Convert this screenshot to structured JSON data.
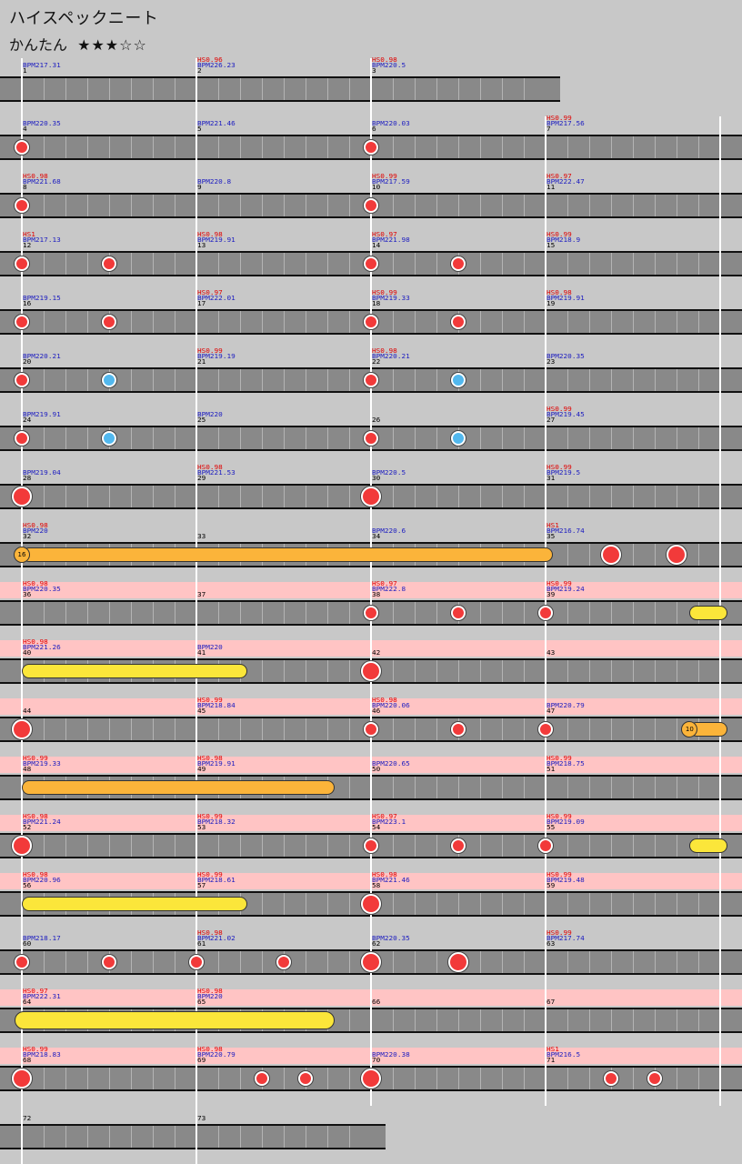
{
  "song_title": "ハイスペックニート",
  "difficulty": {
    "name": "かんたん",
    "stars": "★★★☆☆"
  },
  "colors": {
    "don": "#f23a3a",
    "ka": "#52b8ee",
    "roll": "#fbe63a",
    "big_roll": "#fbb43a",
    "gogo": "#ffc4c4",
    "track": "#898989"
  },
  "rows": [
    {
      "gogo": false,
      "measures": [
        {
          "num": "1",
          "bpm": "BPM217.31",
          "hs": ""
        },
        {
          "num": "2",
          "bpm": "BPM226.23",
          "hs": "HS0.96"
        },
        {
          "num": "3",
          "bpm": "BPM220.5",
          "hs": "HS0.98"
        }
      ],
      "notes": [],
      "rolls": [],
      "balloons": []
    },
    {
      "gogo": false,
      "measures": [
        {
          "num": "4",
          "bpm": "BPM220.35",
          "hs": ""
        },
        {
          "num": "5",
          "bpm": "BPM221.46",
          "hs": ""
        },
        {
          "num": "6",
          "bpm": "BPM220.03",
          "hs": ""
        },
        {
          "num": "7",
          "bpm": "BPM217.56",
          "hs": "HS0.99"
        }
      ],
      "notes": [
        {
          "m": 0,
          "b": 0,
          "t": "don",
          "big": false
        },
        {
          "m": 2,
          "b": 0,
          "t": "don",
          "big": false
        }
      ],
      "rolls": [],
      "balloons": []
    },
    {
      "gogo": false,
      "measures": [
        {
          "num": "8",
          "bpm": "BPM221.68",
          "hs": "HS0.98"
        },
        {
          "num": "9",
          "bpm": "BPM220.8",
          "hs": ""
        },
        {
          "num": "10",
          "bpm": "BPM217.59",
          "hs": "HS0.99"
        },
        {
          "num": "11",
          "bpm": "BPM222.47",
          "hs": "HS0.97"
        }
      ],
      "notes": [
        {
          "m": 0,
          "b": 0,
          "t": "don",
          "big": false
        },
        {
          "m": 2,
          "b": 0,
          "t": "don",
          "big": false
        }
      ],
      "rolls": [],
      "balloons": []
    },
    {
      "gogo": false,
      "measures": [
        {
          "num": "12",
          "bpm": "BPM217.13",
          "hs": "HS1"
        },
        {
          "num": "13",
          "bpm": "BPM219.91",
          "hs": "HS0.98"
        },
        {
          "num": "14",
          "bpm": "BPM221.98",
          "hs": "HS0.97"
        },
        {
          "num": "15",
          "bpm": "BPM218.9",
          "hs": "HS0.99"
        }
      ],
      "notes": [
        {
          "m": 0,
          "b": 0,
          "t": "don",
          "big": false
        },
        {
          "m": 0,
          "b": 2,
          "t": "don",
          "big": false
        },
        {
          "m": 2,
          "b": 0,
          "t": "don",
          "big": false
        },
        {
          "m": 2,
          "b": 2,
          "t": "don",
          "big": false
        }
      ],
      "rolls": [],
      "balloons": []
    },
    {
      "gogo": false,
      "measures": [
        {
          "num": "16",
          "bpm": "BPM219.15",
          "hs": ""
        },
        {
          "num": "17",
          "bpm": "BPM222.01",
          "hs": "HS0.97"
        },
        {
          "num": "18",
          "bpm": "BPM219.33",
          "hs": "HS0.99"
        },
        {
          "num": "19",
          "bpm": "BPM219.91",
          "hs": "HS0.98"
        }
      ],
      "notes": [
        {
          "m": 0,
          "b": 0,
          "t": "don",
          "big": false
        },
        {
          "m": 0,
          "b": 2,
          "t": "don",
          "big": false
        },
        {
          "m": 2,
          "b": 0,
          "t": "don",
          "big": false
        },
        {
          "m": 2,
          "b": 2,
          "t": "don",
          "big": false
        }
      ],
      "rolls": [],
      "balloons": []
    },
    {
      "gogo": false,
      "measures": [
        {
          "num": "20",
          "bpm": "BPM220.21",
          "hs": ""
        },
        {
          "num": "21",
          "bpm": "BPM219.19",
          "hs": "HS0.99"
        },
        {
          "num": "22",
          "bpm": "BPM220.21",
          "hs": "HS0.98"
        },
        {
          "num": "23",
          "bpm": "BPM220.35",
          "hs": ""
        }
      ],
      "notes": [
        {
          "m": 0,
          "b": 0,
          "t": "don",
          "big": false
        },
        {
          "m": 0,
          "b": 2,
          "t": "ka",
          "big": false
        },
        {
          "m": 2,
          "b": 0,
          "t": "don",
          "big": false
        },
        {
          "m": 2,
          "b": 2,
          "t": "ka",
          "big": false
        }
      ],
      "rolls": [],
      "balloons": []
    },
    {
      "gogo": false,
      "measures": [
        {
          "num": "24",
          "bpm": "BPM219.91",
          "hs": ""
        },
        {
          "num": "25",
          "bpm": "BPM220",
          "hs": ""
        },
        {
          "num": "26",
          "bpm": "",
          "hs": ""
        },
        {
          "num": "27",
          "bpm": "BPM219.45",
          "hs": "HS0.99"
        }
      ],
      "notes": [
        {
          "m": 0,
          "b": 0,
          "t": "don",
          "big": false
        },
        {
          "m": 0,
          "b": 2,
          "t": "ka",
          "big": false
        },
        {
          "m": 2,
          "b": 0,
          "t": "don",
          "big": false
        },
        {
          "m": 2,
          "b": 2,
          "t": "ka",
          "big": false
        }
      ],
      "rolls": [],
      "balloons": []
    },
    {
      "gogo": false,
      "measures": [
        {
          "num": "28",
          "bpm": "BPM219.04",
          "hs": ""
        },
        {
          "num": "29",
          "bpm": "BPM221.53",
          "hs": "HS0.98"
        },
        {
          "num": "30",
          "bpm": "BPM220.5",
          "hs": ""
        },
        {
          "num": "31",
          "bpm": "BPM219.5",
          "hs": "HS0.99"
        }
      ],
      "notes": [
        {
          "m": 0,
          "b": 0,
          "t": "don",
          "big": true
        },
        {
          "m": 2,
          "b": 0,
          "t": "don",
          "big": true
        }
      ],
      "rolls": [],
      "balloons": []
    },
    {
      "gogo": false,
      "measures": [
        {
          "num": "32",
          "bpm": "BPM220",
          "hs": "HS0.98"
        },
        {
          "num": "33",
          "bpm": "",
          "hs": ""
        },
        {
          "num": "34",
          "bpm": "BPM220.6",
          "hs": ""
        },
        {
          "num": "35",
          "bpm": "BPM216.74",
          "hs": "HS1"
        }
      ],
      "notes": [
        {
          "m": 3,
          "b": 1.5,
          "t": "don",
          "big": true
        },
        {
          "m": 3,
          "b": 3,
          "t": "don",
          "big": true
        }
      ],
      "rolls": [
        {
          "m0": 0,
          "b0": 0,
          "m1": 3,
          "b1": 0,
          "kind": "orange"
        }
      ],
      "balloons": [
        {
          "m": 0,
          "b": 0,
          "count": "16"
        }
      ]
    },
    {
      "gogo": true,
      "measures": [
        {
          "num": "36",
          "bpm": "BPM220.35",
          "hs": "HS0.98"
        },
        {
          "num": "37",
          "bpm": "",
          "hs": ""
        },
        {
          "num": "38",
          "bpm": "BPM222.8",
          "hs": "HS0.97"
        },
        {
          "num": "39",
          "bpm": "BPM219.24",
          "hs": "HS0.99"
        }
      ],
      "notes": [
        {
          "m": 2,
          "b": 0,
          "t": "don",
          "big": false
        },
        {
          "m": 2,
          "b": 2,
          "t": "don",
          "big": false
        },
        {
          "m": 3,
          "b": 0,
          "t": "don",
          "big": false
        }
      ],
      "rolls": [
        {
          "m0": 3,
          "b0": 3.3,
          "m1": 4,
          "b1": 0,
          "kind": "yellow"
        }
      ],
      "balloons": []
    },
    {
      "gogo": true,
      "measures": [
        {
          "num": "40",
          "bpm": "BPM221.26",
          "hs": "HS0.98"
        },
        {
          "num": "41",
          "bpm": "BPM220",
          "hs": ""
        },
        {
          "num": "42",
          "bpm": "",
          "hs": ""
        },
        {
          "num": "43",
          "bpm": "",
          "hs": ""
        }
      ],
      "notes": [
        {
          "m": 2,
          "b": 0,
          "t": "don",
          "big": true
        }
      ],
      "rolls": [
        {
          "m0": 0,
          "b0": 0,
          "m1": 1,
          "b1": 1,
          "kind": "yellow"
        }
      ],
      "balloons": []
    },
    {
      "gogo": true,
      "measures": [
        {
          "num": "44",
          "bpm": "",
          "hs": ""
        },
        {
          "num": "45",
          "bpm": "BPM218.84",
          "hs": "HS0.99"
        },
        {
          "num": "46",
          "bpm": "BPM220.06",
          "hs": "HS0.98"
        },
        {
          "num": "47",
          "bpm": "BPM220.79",
          "hs": ""
        }
      ],
      "notes": [
        {
          "m": 0,
          "b": 0,
          "t": "don",
          "big": true
        },
        {
          "m": 2,
          "b": 0,
          "t": "don",
          "big": false
        },
        {
          "m": 2,
          "b": 2,
          "t": "don",
          "big": false
        },
        {
          "m": 3,
          "b": 0,
          "t": "don",
          "big": false
        }
      ],
      "rolls": [
        {
          "m0": 3,
          "b0": 3.3,
          "m1": 4,
          "b1": 0,
          "kind": "orange"
        }
      ],
      "balloons": [
        {
          "m": 3,
          "b": 3.3,
          "count": "10"
        }
      ]
    },
    {
      "gogo": true,
      "measures": [
        {
          "num": "48",
          "bpm": "BPM219.33",
          "hs": "HS0.99"
        },
        {
          "num": "49",
          "bpm": "BPM219.91",
          "hs": "HS0.98"
        },
        {
          "num": "50",
          "bpm": "BPM220.65",
          "hs": ""
        },
        {
          "num": "51",
          "bpm": "BPM218.75",
          "hs": "HS0.99"
        }
      ],
      "notes": [],
      "rolls": [
        {
          "m0": 0,
          "b0": 0,
          "m1": 1,
          "b1": 3,
          "kind": "orange"
        }
      ],
      "balloons": []
    },
    {
      "gogo": true,
      "measures": [
        {
          "num": "52",
          "bpm": "BPM221.24",
          "hs": "HS0.98"
        },
        {
          "num": "53",
          "bpm": "BPM218.32",
          "hs": "HS0.99"
        },
        {
          "num": "54",
          "bpm": "BPM223.1",
          "hs": "HS0.97"
        },
        {
          "num": "55",
          "bpm": "BPM219.09",
          "hs": "HS0.99"
        }
      ],
      "notes": [
        {
          "m": 0,
          "b": 0,
          "t": "don",
          "big": true
        },
        {
          "m": 2,
          "b": 0,
          "t": "don",
          "big": false
        },
        {
          "m": 2,
          "b": 2,
          "t": "don",
          "big": false
        },
        {
          "m": 3,
          "b": 0,
          "t": "don",
          "big": false
        }
      ],
      "rolls": [
        {
          "m0": 3,
          "b0": 3.3,
          "m1": 4,
          "b1": 0,
          "kind": "yellow"
        }
      ],
      "balloons": []
    },
    {
      "gogo": true,
      "measures": [
        {
          "num": "56",
          "bpm": "BPM220.96",
          "hs": "HS0.98"
        },
        {
          "num": "57",
          "bpm": "BPM218.61",
          "hs": "HS0.99"
        },
        {
          "num": "58",
          "bpm": "BPM221.46",
          "hs": "HS0.98"
        },
        {
          "num": "59",
          "bpm": "BPM219.48",
          "hs": "HS0.99"
        }
      ],
      "notes": [
        {
          "m": 2,
          "b": 0,
          "t": "don",
          "big": true
        }
      ],
      "rolls": [
        {
          "m0": 0,
          "b0": 0,
          "m1": 1,
          "b1": 1,
          "kind": "yellow"
        }
      ],
      "balloons": []
    },
    {
      "gogo": false,
      "measures": [
        {
          "num": "60",
          "bpm": "BPM218.17",
          "hs": ""
        },
        {
          "num": "61",
          "bpm": "BPM221.02",
          "hs": "HS0.98"
        },
        {
          "num": "62",
          "bpm": "BPM220.35",
          "hs": ""
        },
        {
          "num": "63",
          "bpm": "BPM217.74",
          "hs": "HS0.99"
        }
      ],
      "notes": [
        {
          "m": 0,
          "b": 0,
          "t": "don",
          "big": false
        },
        {
          "m": 0,
          "b": 2,
          "t": "don",
          "big": false
        },
        {
          "m": 1,
          "b": 0,
          "t": "don",
          "big": false
        },
        {
          "m": 1,
          "b": 2,
          "t": "don",
          "big": false
        },
        {
          "m": 2,
          "b": 0,
          "t": "don",
          "big": true
        },
        {
          "m": 2,
          "b": 2,
          "t": "don",
          "big": true
        }
      ],
      "rolls": [],
      "balloons": []
    },
    {
      "gogo": true,
      "measures": [
        {
          "num": "64",
          "bpm": "BPM222.31",
          "hs": "HS0.97"
        },
        {
          "num": "65",
          "bpm": "BPM220",
          "hs": "HS0.98"
        },
        {
          "num": "66",
          "bpm": "",
          "hs": ""
        },
        {
          "num": "67",
          "bpm": "",
          "hs": ""
        }
      ],
      "notes": [],
      "rolls": [
        {
          "m0": 0,
          "b0": 0,
          "m1": 1,
          "b1": 3,
          "kind": "yellow",
          "big": true
        }
      ],
      "balloons": []
    },
    {
      "gogo": true,
      "measures": [
        {
          "num": "68",
          "bpm": "BPM218.83",
          "hs": "HS0.99"
        },
        {
          "num": "69",
          "bpm": "BPM220.79",
          "hs": "HS0.98"
        },
        {
          "num": "70",
          "bpm": "BPM220.38",
          "hs": ""
        },
        {
          "num": "71",
          "bpm": "BPM216.5",
          "hs": "HS1"
        }
      ],
      "notes": [
        {
          "m": 0,
          "b": 0,
          "t": "don",
          "big": true
        },
        {
          "m": 1,
          "b": 1.5,
          "t": "don",
          "big": false
        },
        {
          "m": 1,
          "b": 2.5,
          "t": "don",
          "big": false
        },
        {
          "m": 2,
          "b": 0,
          "t": "don",
          "big": true
        },
        {
          "m": 3,
          "b": 1.5,
          "t": "don",
          "big": false
        },
        {
          "m": 3,
          "b": 2.5,
          "t": "don",
          "big": false
        }
      ],
      "rolls": [],
      "balloons": []
    },
    {
      "gogo": false,
      "measures": [
        {
          "num": "72",
          "bpm": "",
          "hs": ""
        },
        {
          "num": "73",
          "bpm": "",
          "hs": ""
        }
      ],
      "notes": [],
      "rolls": [],
      "balloons": []
    }
  ]
}
